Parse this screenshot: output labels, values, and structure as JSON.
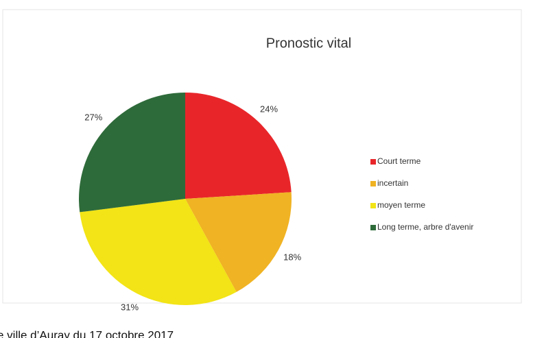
{
  "chart_data": {
    "type": "pie",
    "title": "Pronostic vital",
    "categories": [
      "Court terme",
      "incertain",
      "moyen terme",
      "Long terme, arbre d'avenir"
    ],
    "values": [
      24,
      18,
      31,
      27
    ],
    "value_labels": [
      "24%",
      "18%",
      "31%",
      "27%"
    ],
    "colors": [
      "#e8262a",
      "#f0b323",
      "#f2e416",
      "#2e6b3a"
    ],
    "legend": "right",
    "caption": "e ville d’Auray du 17 octobre 2017"
  }
}
